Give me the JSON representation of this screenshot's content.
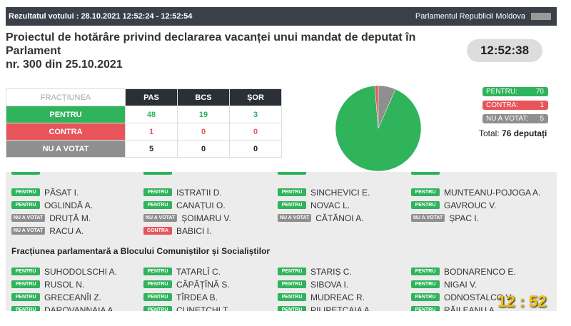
{
  "header": {
    "left": "Rezultatul votului : 28.10.2021 12:52:24 - 12:52:54",
    "right": "Parlamentul Republicii Moldova"
  },
  "title": {
    "line1": "Proiectul de hotărâre privind declararea vacanței unui mandat de deputat în",
    "line2": "Parlament",
    "line3": "nr. 300 din 25.10.2021"
  },
  "clock": "12:52:38",
  "table": {
    "header": [
      "FRACȚIUNEA",
      "PAS",
      "BCS",
      "ȘOR"
    ],
    "rows": [
      [
        "PENTRU",
        48,
        19,
        3
      ],
      [
        "CONTRA",
        1,
        0,
        0
      ],
      [
        "NU A VOTAT",
        5,
        0,
        0
      ]
    ]
  },
  "chart_data": {
    "type": "pie",
    "categories": [
      "PENTRU:",
      "CONTRA:",
      "NU A VOTAT:"
    ],
    "values": [
      70,
      1,
      5
    ],
    "colors": [
      "#2fb35b",
      "#e8545a",
      "#8f8f8f"
    ]
  },
  "total": {
    "label": "Total:",
    "value": "76 deputați"
  },
  "groups": [
    {
      "columns": [
        [
          {
            "vote": "PENTRU",
            "name": "PĂSAT I."
          },
          {
            "vote": "PENTRU",
            "name": "OGLINDĂ A."
          },
          {
            "vote": "NU A VOTAT",
            "name": "DRUȚĂ M."
          },
          {
            "vote": "NU A VOTAT",
            "name": "RACU A."
          }
        ],
        [
          {
            "vote": "PENTRU",
            "name": "ISTRATII D."
          },
          {
            "vote": "PENTRU",
            "name": "CANAȚUI O."
          },
          {
            "vote": "NU A VOTAT",
            "name": "ȘOIMARU V."
          },
          {
            "vote": "CONTRA",
            "name": "BABICI I."
          }
        ],
        [
          {
            "vote": "PENTRU",
            "name": "SINCHEVICI E."
          },
          {
            "vote": "PENTRU",
            "name": "NOVAC L."
          },
          {
            "vote": "NU A VOTAT",
            "name": "CĂTĂNOI A."
          }
        ],
        [
          {
            "vote": "PENTRU",
            "name": "MUNTEANU-POJOGA A."
          },
          {
            "vote": "PENTRU",
            "name": "GAVROUC V."
          },
          {
            "vote": "NU A VOTAT",
            "name": "ȘPAC I."
          }
        ]
      ]
    },
    {
      "title": "Fracțiunea parlamentară a Blocului Comuniștilor și Socialiștilor",
      "columns": [
        [
          {
            "vote": "PENTRU",
            "name": "SUHODOLSCHI A."
          },
          {
            "vote": "PENTRU",
            "name": "RUSOL N."
          },
          {
            "vote": "PENTRU",
            "name": "GRECEANÎI Z."
          },
          {
            "vote": "PENTRU",
            "name": "DAROVANNAIA A"
          }
        ],
        [
          {
            "vote": "PENTRU",
            "name": "TATARLÎ C."
          },
          {
            "vote": "PENTRU",
            "name": "CĂPĂȚÎNĂ S."
          },
          {
            "vote": "PENTRU",
            "name": "TÎRDEA B."
          },
          {
            "vote": "PENTRU",
            "name": "CUNETCHI T"
          }
        ],
        [
          {
            "vote": "PENTRU",
            "name": "STARIȘ C."
          },
          {
            "vote": "PENTRU",
            "name": "SIBOVA I."
          },
          {
            "vote": "PENTRU",
            "name": "MUDREAC R."
          },
          {
            "vote": "PENTRU",
            "name": "PILIPETCAIA A"
          }
        ],
        [
          {
            "vote": "PENTRU",
            "name": "BODNARENCO E."
          },
          {
            "vote": "PENTRU",
            "name": "NIGAI V."
          },
          {
            "vote": "PENTRU",
            "name": "ODNOSTALCO V."
          },
          {
            "vote": "PENTRU",
            "name": "RĂILEANU A"
          }
        ]
      ]
    }
  ],
  "overlay_clock": "12 : 52"
}
